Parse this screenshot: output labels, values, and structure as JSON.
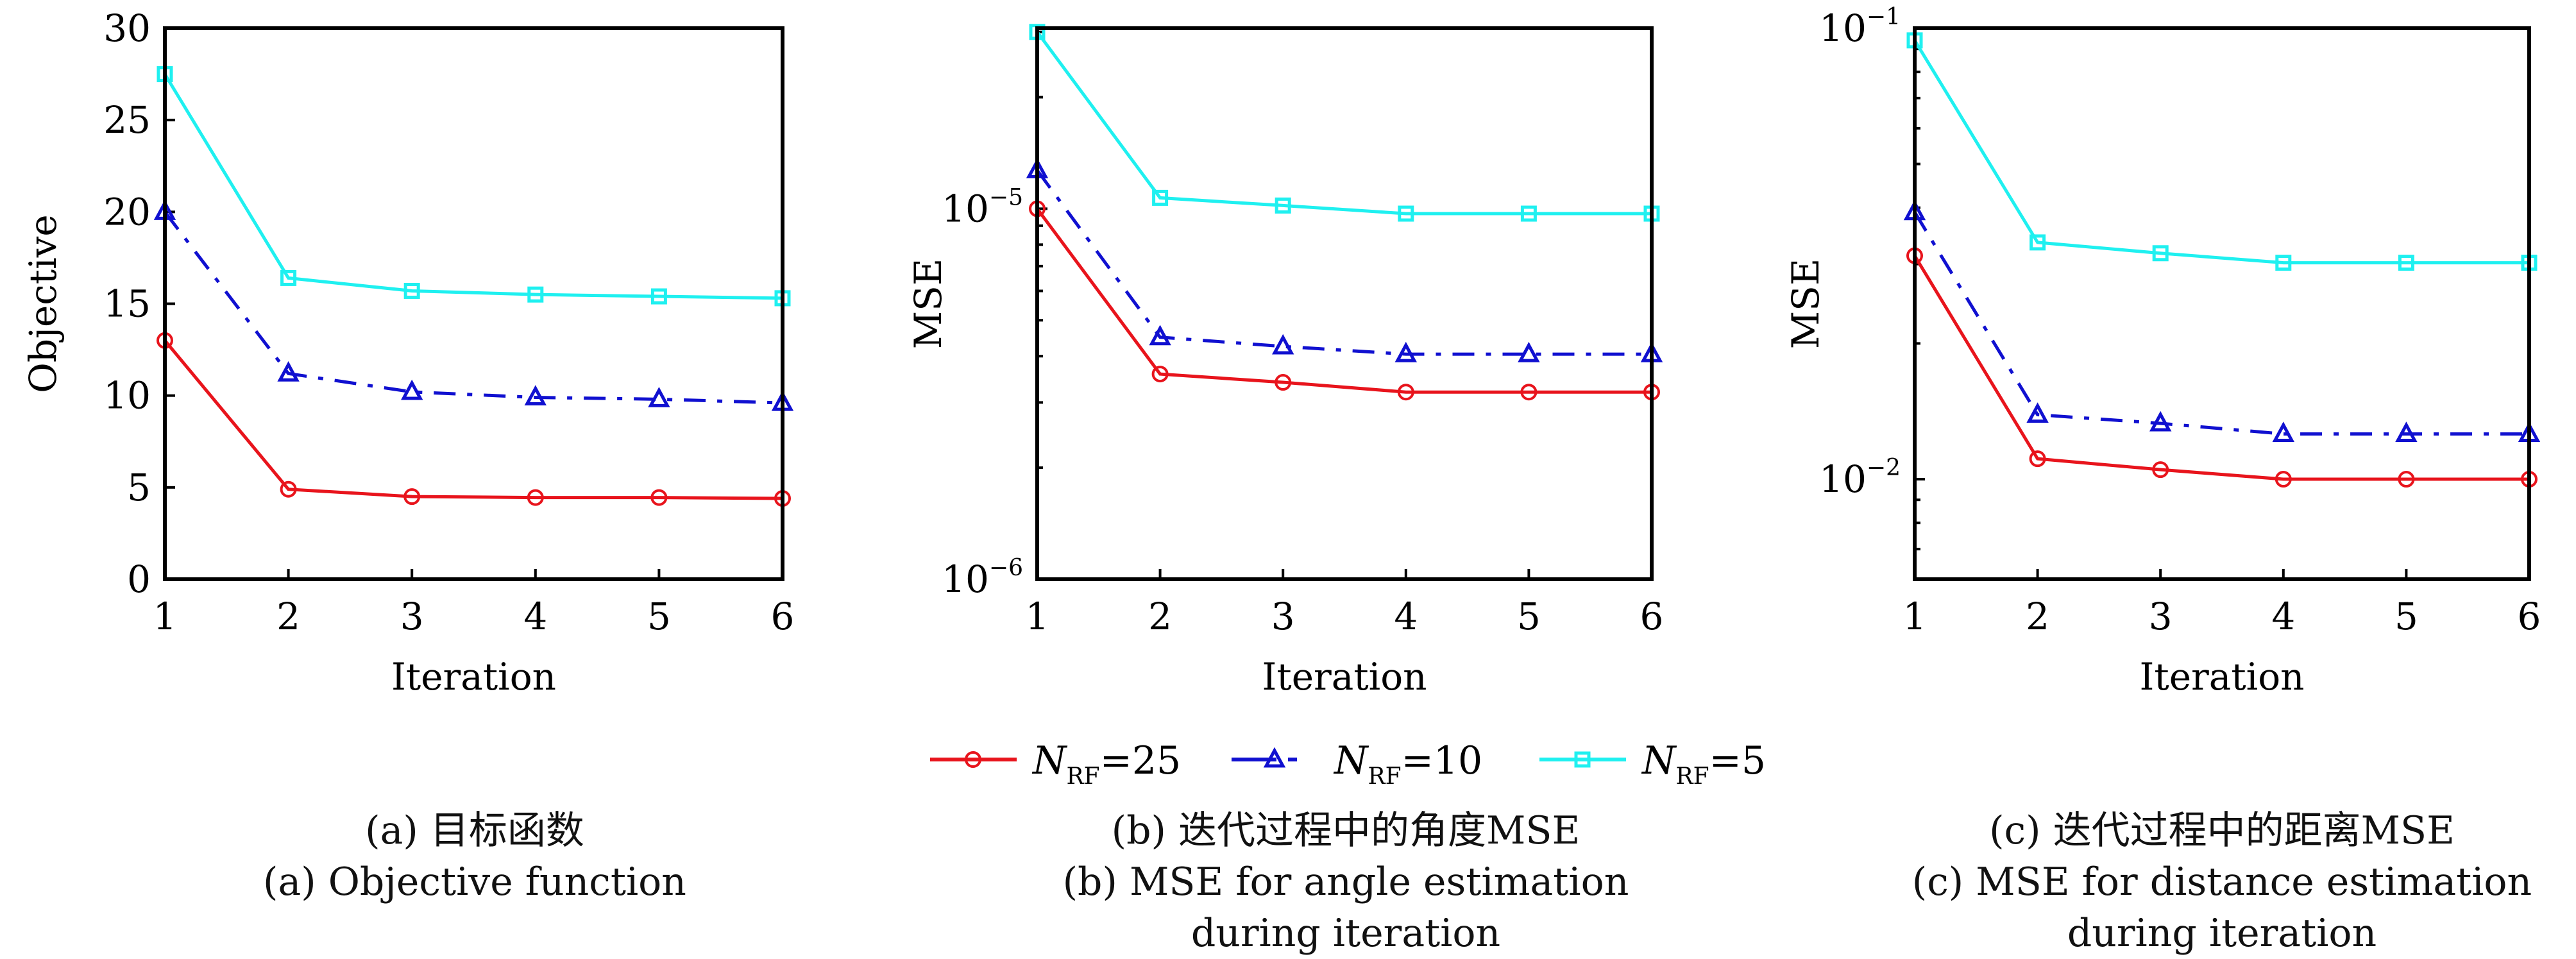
{
  "legend": {
    "entries": [
      {
        "label_main": "N",
        "label_sub": "RF",
        "label_value": "=25",
        "color": "#e8141c",
        "marker": "circle",
        "dash": "solid"
      },
      {
        "label_main": "N",
        "label_sub": "RF",
        "label_value": "=10",
        "color": "#1010d0",
        "marker": "triangle",
        "dash": "dashdot"
      },
      {
        "label_main": "N",
        "label_sub": "RF",
        "label_value": "=5",
        "color": "#1ff0f0",
        "marker": "square",
        "dash": "solid"
      }
    ],
    "placement": "bottom-center"
  },
  "captions": {
    "a": [
      "(a) 目标函数",
      "(a) Objective function"
    ],
    "b": [
      "(b) 迭代过程中的角度MSE",
      "(b) MSE for angle estimation",
      "during iteration"
    ],
    "c": [
      "(c) 迭代过程中的距离MSE",
      "(c) MSE for distance estimation",
      "during iteration"
    ]
  },
  "chart_data": [
    {
      "type": "line",
      "title": "(a) Objective function",
      "xlabel": "Iteration",
      "ylabel": "Objective",
      "yscale": "linear",
      "x": [
        1,
        2,
        3,
        4,
        5,
        6
      ],
      "xlim": [
        1,
        6
      ],
      "ylim": [
        0,
        30
      ],
      "yticks": [
        0,
        5,
        10,
        15,
        20,
        25,
        30
      ],
      "ytick_labels": [
        "0",
        "5",
        "10",
        "15",
        "20",
        "25",
        "30"
      ],
      "xtick_labels": [
        "1",
        "2",
        "3",
        "4",
        "5",
        "6"
      ],
      "grid": false,
      "series": [
        {
          "name": "N_RF=25",
          "values": [
            13.0,
            4.9,
            4.5,
            4.45,
            4.45,
            4.4
          ]
        },
        {
          "name": "N_RF=10",
          "values": [
            20.0,
            11.2,
            10.2,
            9.9,
            9.8,
            9.6
          ]
        },
        {
          "name": "N_RF=5",
          "values": [
            27.5,
            16.4,
            15.7,
            15.5,
            15.4,
            15.3
          ]
        }
      ]
    },
    {
      "type": "line",
      "title": "(b) MSE for angle estimation during iteration",
      "xlabel": "Iteration",
      "ylabel": "MSE",
      "yscale": "log",
      "x": [
        1,
        2,
        3,
        4,
        5,
        6
      ],
      "xlim": [
        1,
        6
      ],
      "ylim": [
        1e-06,
        3.07e-05
      ],
      "yticks": [
        1e-06,
        1e-05
      ],
      "ytick_labels": [
        "10^-6",
        "10^-5"
      ],
      "xtick_labels": [
        "1",
        "2",
        "3",
        "4",
        "5",
        "6"
      ],
      "grid": false,
      "series": [
        {
          "name": "N_RF=25",
          "values": [
            1e-05,
            3.58e-06,
            3.4e-06,
            3.2e-06,
            3.2e-06,
            3.2e-06
          ]
        },
        {
          "name": "N_RF=10",
          "values": [
            1.27e-05,
            4.5e-06,
            4.25e-06,
            4.05e-06,
            4.05e-06,
            4.05e-06
          ]
        },
        {
          "name": "N_RF=5",
          "values": [
            3e-05,
            1.07e-05,
            1.02e-05,
            9.7e-06,
            9.7e-06,
            9.7e-06
          ]
        }
      ]
    },
    {
      "type": "line",
      "title": "(c) MSE for distance estimation during iteration",
      "xlabel": "Iteration",
      "ylabel": "MSE",
      "yscale": "log",
      "x": [
        1,
        2,
        3,
        4,
        5,
        6
      ],
      "xlim": [
        1,
        6
      ],
      "ylim": [
        0.006,
        0.1
      ],
      "yticks": [
        0.01,
        0.1
      ],
      "ytick_labels": [
        "10^-2",
        "10^-1"
      ],
      "xtick_labels": [
        "1",
        "2",
        "3",
        "4",
        "5",
        "6"
      ],
      "grid": false,
      "series": [
        {
          "name": "N_RF=25",
          "values": [
            0.0313,
            0.0111,
            0.0105,
            0.01,
            0.01,
            0.01
          ]
        },
        {
          "name": "N_RF=10",
          "values": [
            0.0391,
            0.0139,
            0.0133,
            0.0126,
            0.0126,
            0.0126
          ]
        },
        {
          "name": "N_RF=5",
          "values": [
            0.094,
            0.0335,
            0.0317,
            0.0302,
            0.0302,
            0.0302
          ]
        }
      ]
    }
  ]
}
